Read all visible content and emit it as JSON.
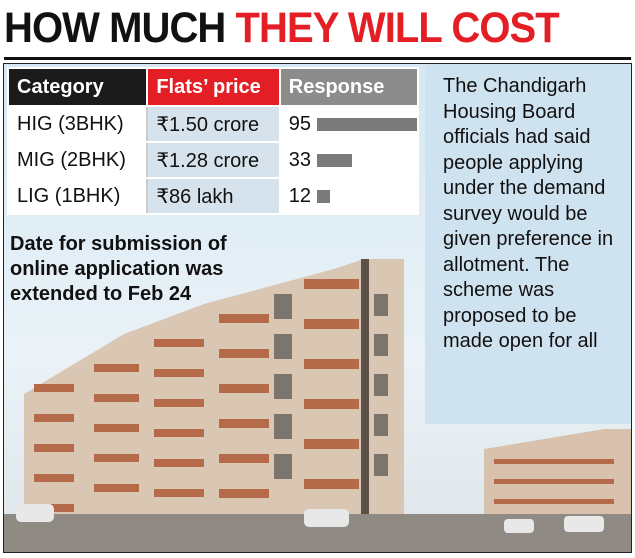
{
  "headline": {
    "part1": "HOW MUCH ",
    "part2": "THEY WILL COST"
  },
  "table": {
    "headers": [
      "Category",
      "Flats’ price",
      "Response"
    ],
    "rows": [
      {
        "category": "HIG (3BHK)",
        "price": "₹1.50 crore",
        "response": "95",
        "response_fraction": 0.95
      },
      {
        "category": "MIG (2BHK)",
        "price": "₹1.28 crore",
        "response": "33",
        "response_fraction": 0.33
      },
      {
        "category": "LIG (1BHK)",
        "price": "₹86 lakh",
        "response": "12",
        "response_fraction": 0.12
      }
    ]
  },
  "sidebar_text": "The Chandigarh Housing Board officials had said people applying under the demand survey would be given preference in allotment. The scheme was proposed to be made open for all",
  "note_text": "Date for submission of online application was extended to Feb 24",
  "colors": {
    "accent_red": "#e31e24",
    "header_dark": "#1b1b1b",
    "header_grey": "#8c8c8c",
    "price_bg": "#d6e3ec",
    "sidebar_bg": "#cfe2ef",
    "bar": "#7b7b7b"
  }
}
